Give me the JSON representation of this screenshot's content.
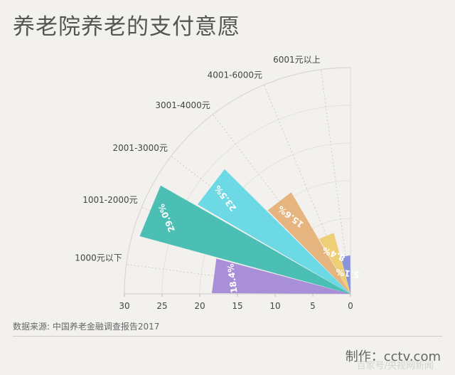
{
  "title": "养老院养老的支付意愿",
  "source": "数据来源: 中国养老金融调查报告2017",
  "credit": "制作：cctv.com",
  "watermark": "百家号/央视网新闻",
  "chart_data": {
    "type": "bar",
    "subtype": "radial-fan",
    "categories": [
      "1000元以下",
      "1001-2000元",
      "2001-3000元",
      "3001-4000元",
      "4001-6000元",
      "6001元以上"
    ],
    "values": [
      18.4,
      29.0,
      23.5,
      15.6,
      8.4,
      5.1
    ],
    "value_labels": [
      "18.4%",
      "29.0%",
      "23.5%",
      "15.6%",
      "8.4%",
      "5.1%"
    ],
    "colors": [
      "#a98fd8",
      "#4bbfb4",
      "#6dd9e4",
      "#e6b47f",
      "#efcf76",
      "#8a93de"
    ],
    "radial_ticks": [
      30,
      25,
      20,
      15,
      10,
      5,
      0
    ],
    "radial_range": [
      0,
      30
    ],
    "grid": true
  }
}
